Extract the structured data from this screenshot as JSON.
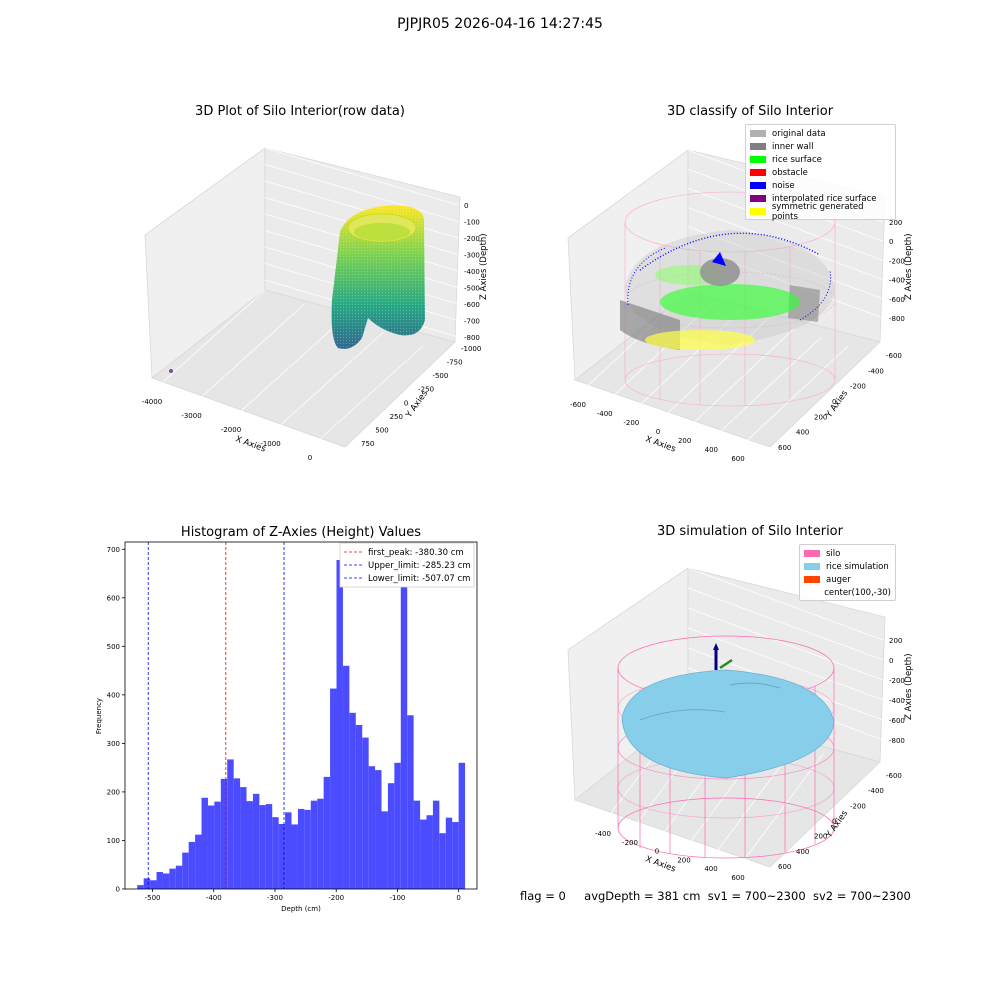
{
  "suptitle": "PJPJR05 2026-04-16 14:27:45",
  "panels": {
    "raw": {
      "title": "3D Plot of Silo Interior(row data)",
      "xlabel": "X Axies",
      "ylabel": "Y Axies",
      "zlabel": "Z Axies (Depth)",
      "xticks": [
        "-4000",
        "-3000",
        "-2000",
        "-1000",
        "0"
      ],
      "yticks": [
        "750",
        "500",
        "250",
        "0",
        "-250",
        "-500",
        "-750",
        "-1000"
      ],
      "zticks": [
        "0",
        "-100",
        "-200",
        "-300",
        "-400",
        "-500",
        "-600",
        "-700",
        "-800"
      ]
    },
    "classify": {
      "title": "3D classify of Silo Interior",
      "xlabel": "X Axies",
      "ylabel": "Y Axies",
      "zlabel": "Z Axies (Depth)",
      "xticks": [
        "-600",
        "-400",
        "-200",
        "0",
        "200",
        "400",
        "600"
      ],
      "yticks": [
        "600",
        "400",
        "200",
        "0",
        "-200",
        "-400",
        "-600"
      ],
      "zticks": [
        "200",
        "0",
        "-200",
        "-400",
        "-600",
        "-800"
      ],
      "legend": [
        {
          "label": "original data",
          "color": "#b0b0b0"
        },
        {
          "label": "inner wall",
          "color": "#808080"
        },
        {
          "label": "rice surface",
          "color": "#00ff00"
        },
        {
          "label": "obstacle",
          "color": "#ff0000"
        },
        {
          "label": "noise",
          "color": "#0000ff"
        },
        {
          "label": "interpolated rice surface",
          "color": "#800080"
        },
        {
          "label": "symmetric generated points",
          "color": "#ffff00"
        }
      ]
    },
    "simulation": {
      "title": "3D simulation of Silo Interior",
      "xlabel": "X Axies",
      "ylabel": "Y Axies",
      "zlabel": "Z Axies (Depth)",
      "xticks": [
        "-400",
        "-200",
        "0",
        "200",
        "400",
        "600"
      ],
      "yticks": [
        "600",
        "400",
        "200",
        "0",
        "-200",
        "-400",
        "-600"
      ],
      "zticks": [
        "200",
        "0",
        "-200",
        "-400",
        "-600",
        "-800"
      ],
      "legend": [
        {
          "label": "silo",
          "color": "#ff69b4"
        },
        {
          "label": "rice simulation",
          "color": "#87ceeb"
        },
        {
          "label": "auger",
          "color": "#ff4500"
        },
        {
          "label": "center(100,-30)",
          "color": ""
        }
      ]
    }
  },
  "chart_data": {
    "type": "bar",
    "title": "Histogram of Z-Axies (Height) Values",
    "xlabel": "Depth (cm)",
    "ylabel": "Frequency",
    "xlim": [
      -545,
      30
    ],
    "ylim": [
      0,
      715
    ],
    "xticks": [
      -500,
      -400,
      -300,
      -200,
      -100,
      0
    ],
    "yticks": [
      0,
      100,
      200,
      300,
      400,
      500,
      600,
      700
    ],
    "bar_color": "#4b4bff",
    "bin_start": -525,
    "bin_width": 10.5,
    "values": [
      8,
      22,
      18,
      35,
      32,
      42,
      48,
      75,
      97,
      112,
      188,
      172,
      180,
      227,
      267,
      228,
      210,
      181,
      196,
      173,
      175,
      148,
      134,
      158,
      133,
      165,
      163,
      182,
      186,
      231,
      413,
      678,
      460,
      363,
      338,
      312,
      253,
      245,
      160,
      218,
      260,
      640,
      358,
      182,
      143,
      152,
      182,
      115,
      147,
      138,
      260
    ],
    "vlines": [
      {
        "label": "first_peak: -380.30 cm",
        "x": -380.3,
        "color": "#ff0000"
      },
      {
        "label": "Upper_limit: -285.23 cm",
        "x": -285.23,
        "color": "#0000ff"
      },
      {
        "label": "Lower_limit: -507.07 cm",
        "x": -507.07,
        "color": "#0000ff"
      }
    ],
    "legend_position": "upper right"
  },
  "footer": {
    "flag": "flag = 0",
    "avg_depth": "avgDepth = 381 cm",
    "sv1": "sv1 = 700~2300",
    "sv2": "sv2 = 700~2300"
  }
}
